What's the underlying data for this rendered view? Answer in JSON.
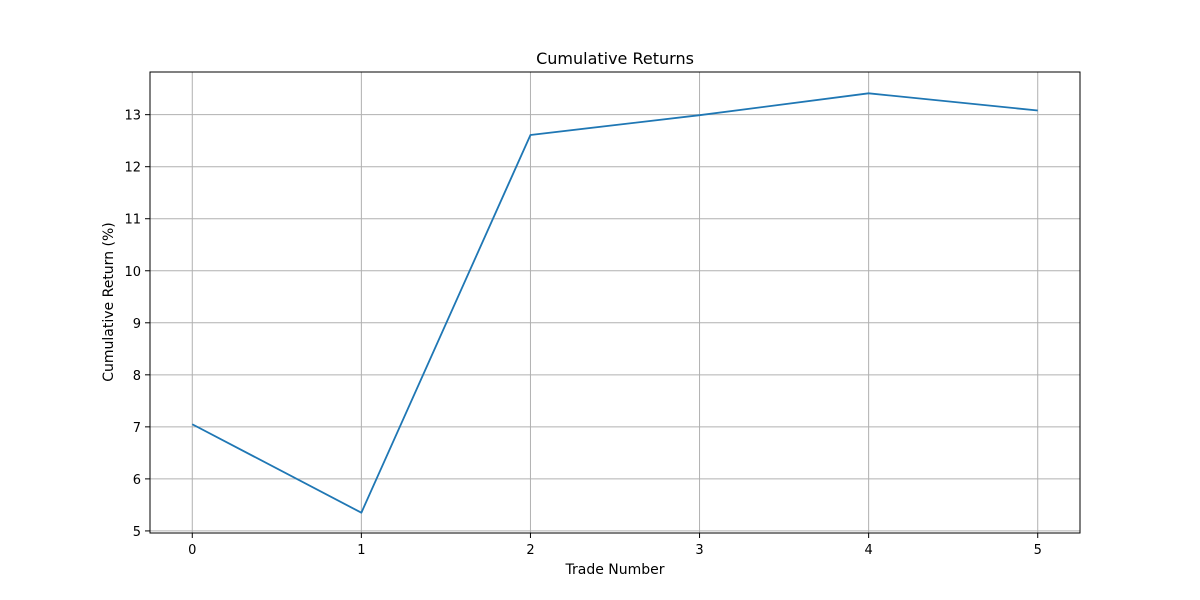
{
  "chart_data": {
    "type": "line",
    "title": "Cumulative Returns",
    "xlabel": "Trade Number",
    "ylabel": "Cumulative Return (%)",
    "x": [
      0,
      1,
      2,
      3,
      4,
      5
    ],
    "series": [
      {
        "values": [
          7.05,
          5.35,
          12.61,
          12.99,
          13.41,
          13.08
        ]
      }
    ],
    "xlim": [
      -0.25,
      5.25
    ],
    "ylim": [
      4.96,
      13.82
    ],
    "xticks": [
      0,
      1,
      2,
      3,
      4,
      5
    ],
    "yticks": [
      5,
      6,
      7,
      8,
      9,
      10,
      11,
      12,
      13
    ],
    "grid": true,
    "line_color": "#1f77b4",
    "grid_color": "#b0b0b0"
  }
}
